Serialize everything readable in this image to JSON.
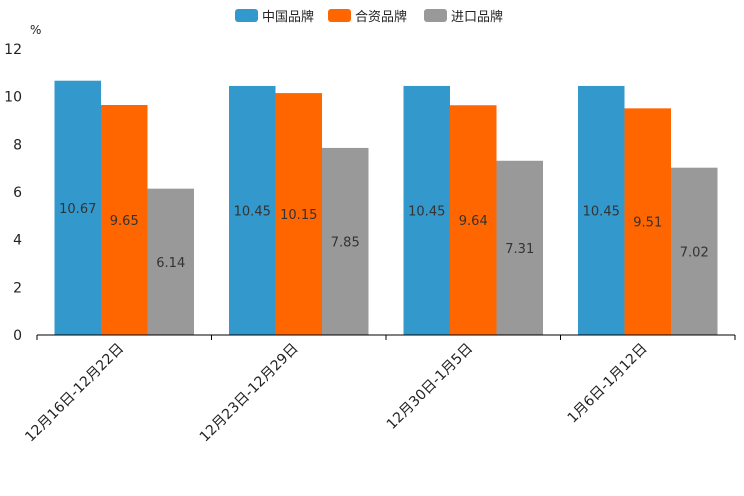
{
  "chart_data": {
    "type": "bar",
    "title": "",
    "unit": "%",
    "xlabel": "",
    "ylabel": "%",
    "ylim": [
      0,
      12
    ],
    "yticks": [
      0,
      2,
      4,
      6,
      8,
      10,
      12
    ],
    "legend_position": "top-center",
    "categories": [
      "12月16日-12月22日",
      "12月23日-12月29日",
      "12月30日-1月5日",
      "1月6日-1月12日"
    ],
    "series": [
      {
        "name": "中国品牌",
        "color": "#3399cc",
        "values": [
          10.67,
          10.45,
          10.45,
          10.45
        ]
      },
      {
        "name": "合资品牌",
        "color": "#ff6600",
        "values": [
          9.65,
          10.15,
          9.64,
          9.51
        ]
      },
      {
        "name": "进口品牌",
        "color": "#999999",
        "values": [
          6.14,
          7.85,
          7.31,
          7.02
        ]
      }
    ]
  }
}
